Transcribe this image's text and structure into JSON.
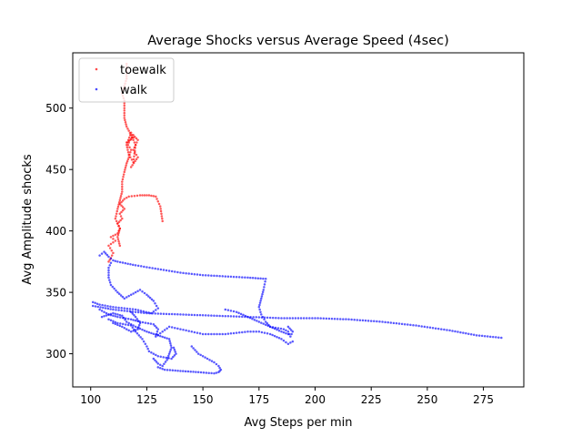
{
  "chart_data": {
    "type": "scatter",
    "title": "Average Shocks versus Average Speed (4sec)",
    "xlabel": "Avg Steps per min",
    "ylabel": "Avg Amplitude shocks",
    "xlim": [
      92,
      293
    ],
    "ylim": [
      273,
      545
    ],
    "xticks": [
      100,
      125,
      150,
      175,
      200,
      225,
      250,
      275
    ],
    "yticks": [
      300,
      350,
      400,
      450,
      500
    ],
    "grid": false,
    "legend": "top-left",
    "series": [
      {
        "name": "toewalk",
        "color": "#ff0000",
        "paths": [
          [
            [
              108,
              375
            ],
            [
              109,
              378
            ],
            [
              110,
              382
            ],
            [
              108,
              388
            ],
            [
              111,
              392
            ],
            [
              109,
              395
            ],
            [
              112,
              398
            ],
            [
              113,
              402
            ],
            [
              112,
              406
            ],
            [
              114,
              410
            ],
            [
              113,
              414
            ],
            [
              115,
              418
            ],
            [
              113,
              422
            ],
            [
              115,
              426
            ],
            [
              117,
              428
            ],
            [
              122,
              429
            ],
            [
              126,
              429
            ],
            [
              129,
              428
            ],
            [
              131,
              420
            ],
            [
              132,
              408
            ]
          ],
          [
            [
              113,
              388
            ],
            [
              112,
              395
            ],
            [
              113,
              402
            ],
            [
              111,
              410
            ],
            [
              112,
              418
            ],
            [
              113,
              425
            ],
            [
              114,
              432
            ],
            [
              114,
              440
            ],
            [
              115,
              448
            ],
            [
              116,
              455
            ],
            [
              117,
              460
            ],
            [
              118,
              466
            ],
            [
              116,
              472
            ],
            [
              119,
              476
            ],
            [
              118,
              480
            ],
            [
              116,
              470
            ],
            [
              117,
              462
            ],
            [
              119,
              456
            ],
            [
              120,
              470
            ],
            [
              118,
              478
            ],
            [
              116,
              485
            ],
            [
              115,
              492
            ],
            [
              115,
              500
            ],
            [
              115,
              506
            ],
            [
              114,
              512
            ],
            [
              115,
              518
            ],
            [
              116,
              524
            ],
            [
              116,
              530
            ],
            [
              116,
              536
            ]
          ],
          [
            [
              117,
              472
            ],
            [
              119,
              478
            ],
            [
              121,
              474
            ],
            [
              119,
              466
            ],
            [
              121,
              460
            ],
            [
              118,
              452
            ]
          ]
        ]
      },
      {
        "name": "walk",
        "color": "#0000ff",
        "paths": [
          [
            [
              104,
              380
            ],
            [
              106,
              383
            ],
            [
              108,
              379
            ],
            [
              110,
              376
            ],
            [
              112,
              375
            ],
            [
              120,
              372
            ],
            [
              130,
              369
            ],
            [
              140,
              366
            ],
            [
              150,
              364
            ],
            [
              160,
              363
            ],
            [
              170,
              362
            ],
            [
              178,
              361
            ],
            [
              177,
              352
            ],
            [
              176,
              345
            ],
            [
              175,
              338
            ],
            [
              176,
              332
            ],
            [
              178,
              326
            ],
            [
              180,
              322
            ],
            [
              186,
              320
            ],
            [
              188,
              318
            ],
            [
              189,
              314
            ],
            [
              190,
              318
            ],
            [
              188,
              322
            ]
          ],
          [
            [
              101,
              342
            ],
            [
              104,
              340
            ],
            [
              110,
              338
            ],
            [
              120,
              336
            ],
            [
              127,
              333
            ],
            [
              130,
              337
            ],
            [
              128,
              343
            ],
            [
              125,
              348
            ],
            [
              122,
              352
            ],
            [
              118,
              348
            ],
            [
              115,
              345
            ],
            [
              112,
              350
            ],
            [
              109,
              356
            ],
            [
              108,
              362
            ],
            [
              108,
              370
            ],
            [
              109,
              374
            ]
          ],
          [
            [
              101,
              339
            ],
            [
              110,
              336
            ],
            [
              125,
              333
            ],
            [
              140,
              332
            ],
            [
              155,
              331
            ],
            [
              170,
              330
            ],
            [
              185,
              329
            ],
            [
              200,
              329
            ],
            [
              215,
              328
            ],
            [
              230,
              326
            ],
            [
              245,
              323
            ],
            [
              260,
              319
            ],
            [
              272,
              315
            ],
            [
              283,
              313
            ]
          ],
          [
            [
              104,
              336
            ],
            [
              108,
              332
            ],
            [
              112,
              330
            ],
            [
              118,
              328
            ],
            [
              122,
              326
            ],
            [
              128,
              324
            ],
            [
              130,
              320
            ],
            [
              129,
              314
            ],
            [
              132,
              318
            ],
            [
              135,
              322
            ],
            [
              140,
              320
            ],
            [
              145,
              318
            ],
            [
              150,
              316
            ],
            [
              155,
              316
            ],
            [
              160,
              316
            ],
            [
              165,
              317
            ],
            [
              170,
              318
            ],
            [
              175,
              318
            ],
            [
              180,
              316
            ],
            [
              185,
              312
            ],
            [
              188,
              308
            ],
            [
              190,
              310
            ]
          ],
          [
            [
              105,
              330
            ],
            [
              110,
              333
            ],
            [
              114,
              331
            ],
            [
              116,
              326
            ],
            [
              120,
              322
            ],
            [
              125,
              318
            ],
            [
              130,
              315
            ],
            [
              135,
              312
            ],
            [
              136,
              305
            ],
            [
              135,
              300
            ],
            [
              134,
              295
            ],
            [
              132,
              290
            ],
            [
              130,
              292
            ],
            [
              128,
              296
            ]
          ],
          [
            [
              108,
              328
            ],
            [
              112,
              325
            ],
            [
              118,
              323
            ],
            [
              120,
              318
            ],
            [
              123,
              312
            ],
            [
              125,
              306
            ],
            [
              126,
              302
            ],
            [
              130,
              298
            ],
            [
              136,
              296
            ],
            [
              138,
              300
            ],
            [
              137,
              305
            ]
          ],
          [
            [
              145,
              306
            ],
            [
              148,
              300
            ],
            [
              152,
              296
            ],
            [
              155,
              293
            ],
            [
              157,
              290
            ],
            [
              158,
              287
            ],
            [
              157,
              285
            ],
            [
              155,
              284
            ],
            [
              148,
              285
            ],
            [
              140,
              286
            ],
            [
              133,
              287
            ],
            [
              130,
              289
            ]
          ],
          [
            [
              160,
              336
            ],
            [
              165,
              334
            ],
            [
              170,
              330
            ],
            [
              175,
              326
            ],
            [
              180,
              322
            ],
            [
              185,
              318
            ],
            [
              188,
              316
            ]
          ],
          [
            [
              118,
              334
            ],
            [
              120,
              330
            ],
            [
              122,
              325
            ],
            [
              121,
              320
            ],
            [
              118,
              318
            ],
            [
              114,
              322
            ],
            [
              110,
              325
            ]
          ]
        ]
      }
    ]
  }
}
